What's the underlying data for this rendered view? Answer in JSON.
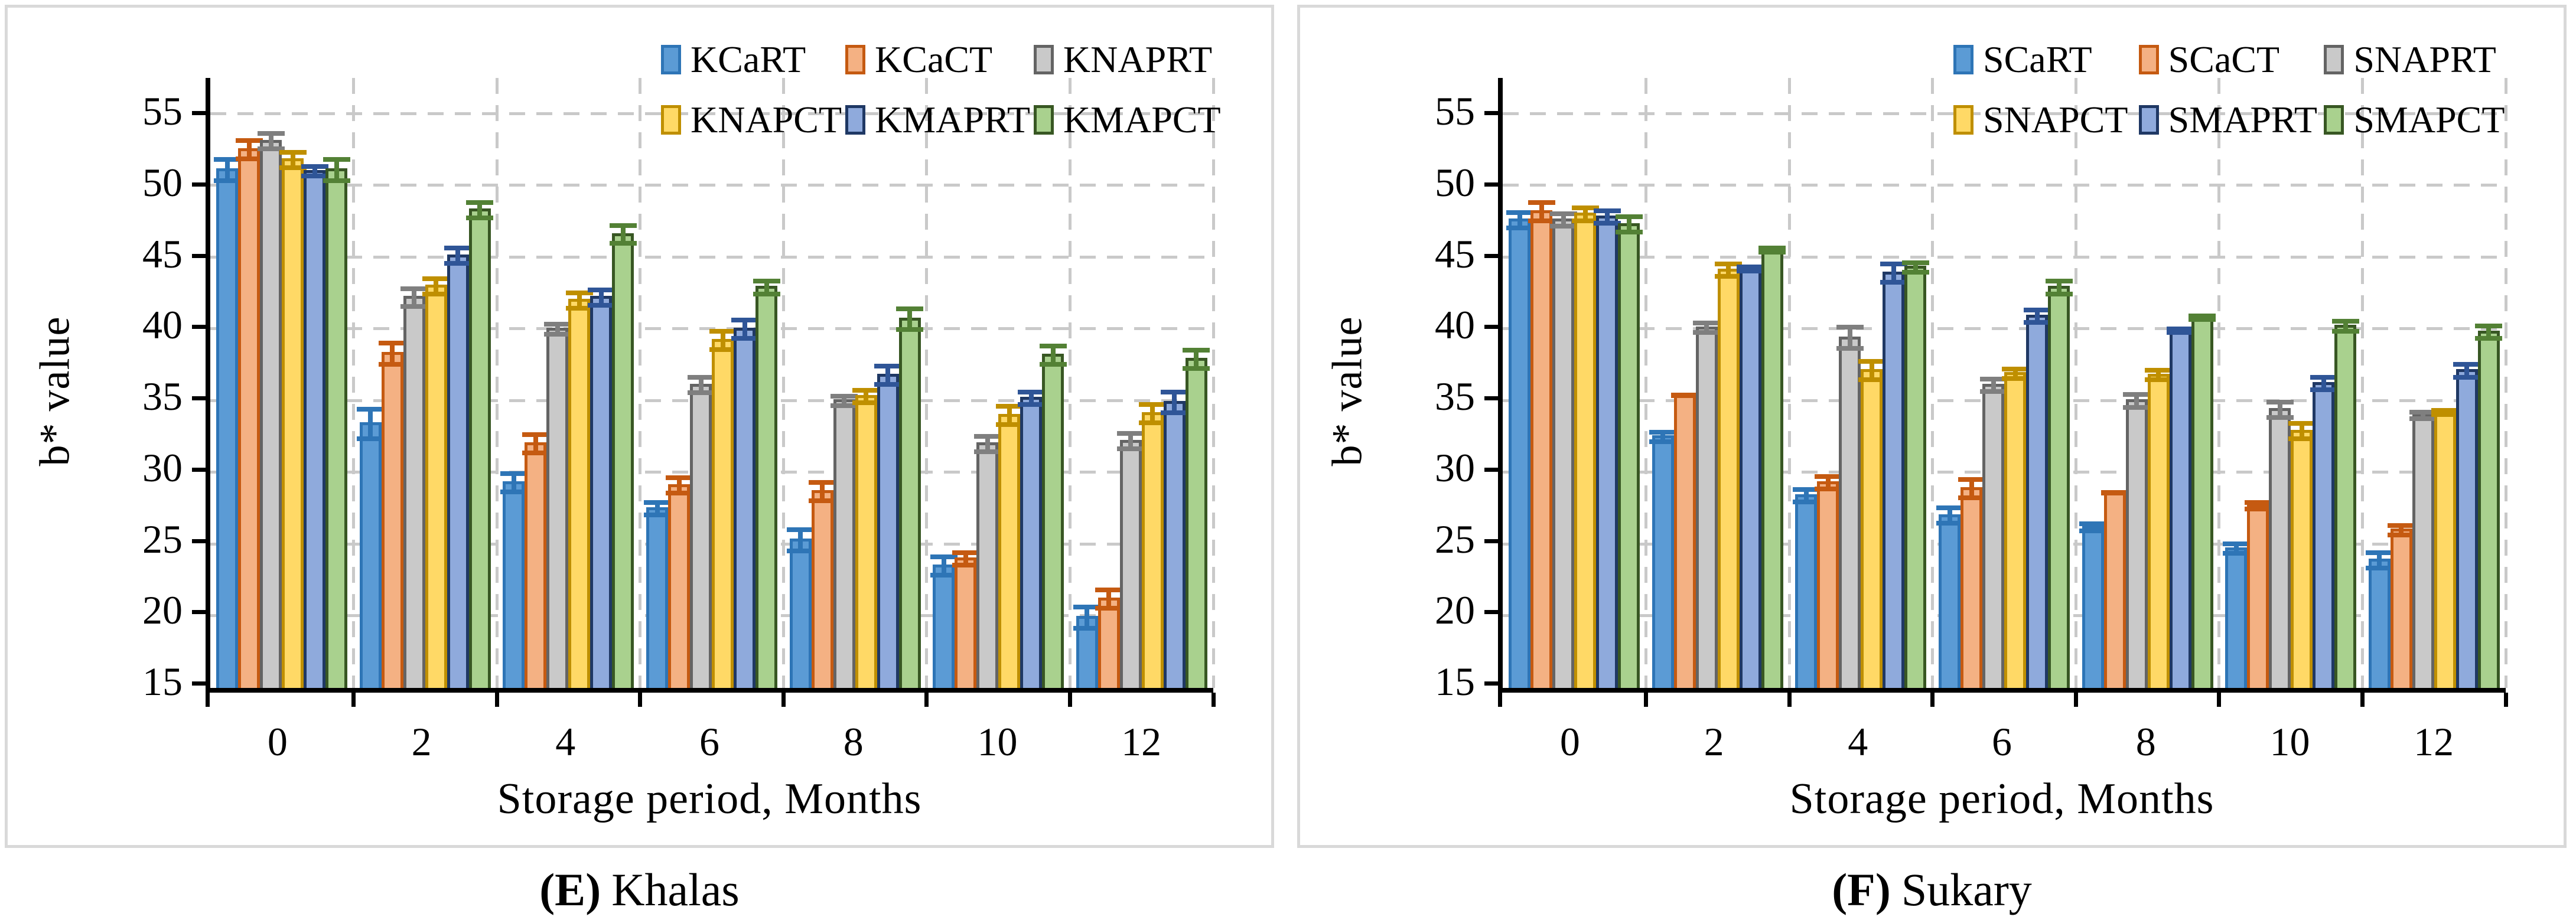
{
  "figure": {
    "ylabel": "b* value",
    "xlabel": "Storage period,  Months",
    "yticks": [
      15,
      20,
      25,
      30,
      35,
      40,
      45,
      50,
      55
    ],
    "gridline_values": [
      20,
      25,
      30,
      35,
      40,
      45,
      50,
      55
    ],
    "categories": [
      "0",
      "2",
      "4",
      "6",
      "8",
      "10",
      "12"
    ],
    "panels": [
      {
        "id": "E",
        "caption_letter": "(E)",
        "caption_name": "Khalas"
      },
      {
        "id": "F",
        "caption_letter": "(F)",
        "caption_name": "Sukary"
      }
    ]
  },
  "colors": {
    "axis": "#000000",
    "grid": "#C9C9C9",
    "panel_border": "#D9D9D9",
    "background": "#FFFFFF",
    "series": [
      {
        "key": "blue",
        "fill": "#5B9BD5",
        "edge": "#2E75B6",
        "error": "#2E75B6"
      },
      {
        "key": "orange",
        "fill": "#F4B183",
        "edge": "#C55A11",
        "error": "#C55A11"
      },
      {
        "key": "gray",
        "fill": "#C9C9C9",
        "edge": "#646464",
        "error": "#7F7F7F"
      },
      {
        "key": "yellow",
        "fill": "#FFD966",
        "edge": "#BF8F00",
        "error": "#BF8F00"
      },
      {
        "key": "medium-blue",
        "fill": "#8FAADC",
        "edge": "#1F3864",
        "error": "#2F5597"
      },
      {
        "key": "green",
        "fill": "#A9D18E",
        "edge": "#385723",
        "error": "#538135"
      }
    ]
  },
  "chart_data": [
    {
      "type": "bar",
      "title": "(E) Khalas",
      "xlabel": "Storage period, Months",
      "ylabel": "b* value",
      "ylim": [
        15,
        55
      ],
      "ytick_step": 5,
      "grid": true,
      "legend_position": "top-right",
      "categories": [
        0,
        2,
        4,
        6,
        8,
        10,
        12
      ],
      "series": [
        {
          "name": "KCaRT",
          "values": [
            51.2,
            33.5,
            29.4,
            27.6,
            25.4,
            23.6,
            20.0
          ],
          "errors": [
            0.9,
            1.2,
            0.8,
            0.6,
            0.9,
            0.8,
            0.9
          ]
        },
        {
          "name": "KCaCT",
          "values": [
            52.6,
            38.4,
            32.1,
            29.2,
            28.8,
            24.1,
            21.3
          ],
          "errors": [
            0.8,
            0.9,
            0.8,
            0.7,
            0.8,
            0.6,
            0.8
          ]
        },
        {
          "name": "KNAPRT",
          "values": [
            53.2,
            42.3,
            40.1,
            36.2,
            35.1,
            32.1,
            32.3
          ],
          "errors": [
            0.7,
            0.8,
            0.5,
            0.7,
            0.5,
            0.7,
            0.7
          ]
        },
        {
          "name": "KNAPCT",
          "values": [
            51.9,
            43.1,
            42.1,
            39.3,
            35.4,
            34.1,
            34.2
          ],
          "errors": [
            0.7,
            0.7,
            0.7,
            0.8,
            0.6,
            0.8,
            0.8
          ]
        },
        {
          "name": "KMAPRT",
          "values": [
            51.1,
            45.2,
            42.3,
            40.1,
            36.9,
            35.3,
            35.0
          ],
          "errors": [
            0.5,
            0.7,
            0.7,
            0.8,
            0.8,
            0.6,
            0.9
          ]
        },
        {
          "name": "KMAPCT",
          "values": [
            51.2,
            48.4,
            46.7,
            43.0,
            40.8,
            38.3,
            38.0
          ],
          "errors": [
            0.9,
            0.7,
            0.8,
            0.6,
            0.9,
            0.8,
            0.8
          ]
        }
      ]
    },
    {
      "type": "bar",
      "title": "(F) Sukary",
      "xlabel": "Storage period, Months",
      "ylabel": "b* value",
      "ylim": [
        15,
        55
      ],
      "ytick_step": 5,
      "grid": true,
      "legend_position": "top-right",
      "categories": [
        0,
        2,
        4,
        6,
        8,
        10,
        12
      ],
      "series": [
        {
          "name": "SCaRT",
          "values": [
            47.7,
            32.6,
            28.5,
            27.1,
            26.3,
            24.8,
            24.0
          ],
          "errors": [
            0.7,
            0.5,
            0.6,
            0.7,
            0.4,
            0.5,
            0.7
          ]
        },
        {
          "name": "SCaCT",
          "values": [
            48.3,
            35.5,
            29.4,
            29.0,
            28.7,
            27.8,
            26.1
          ],
          "errors": [
            0.8,
            0.15,
            0.6,
            0.8,
            0.15,
            0.4,
            0.5
          ]
        },
        {
          "name": "SNAPRT",
          "values": [
            47.7,
            40.2,
            39.5,
            36.2,
            35.1,
            34.5,
            34.1
          ],
          "errors": [
            0.6,
            0.5,
            0.9,
            0.6,
            0.6,
            0.7,
            0.4
          ]
        },
        {
          "name": "SNAPCT",
          "values": [
            48.1,
            44.2,
            37.2,
            37.0,
            36.9,
            33.0,
            34.3
          ],
          "errors": [
            0.6,
            0.6,
            0.8,
            0.5,
            0.5,
            0.7,
            0.3
          ]
        },
        {
          "name": "SMAPRT",
          "values": [
            47.9,
            44.3,
            44.0,
            41.0,
            40.0,
            36.3,
            37.2
          ],
          "errors": [
            0.6,
            0.3,
            0.8,
            0.6,
            0.3,
            0.6,
            0.6
          ]
        },
        {
          "name": "SMAPCT",
          "values": [
            47.4,
            45.6,
            44.4,
            43.0,
            40.9,
            40.3,
            39.9
          ],
          "errors": [
            0.7,
            0.3,
            0.5,
            0.6,
            0.3,
            0.5,
            0.6
          ]
        }
      ]
    }
  ]
}
